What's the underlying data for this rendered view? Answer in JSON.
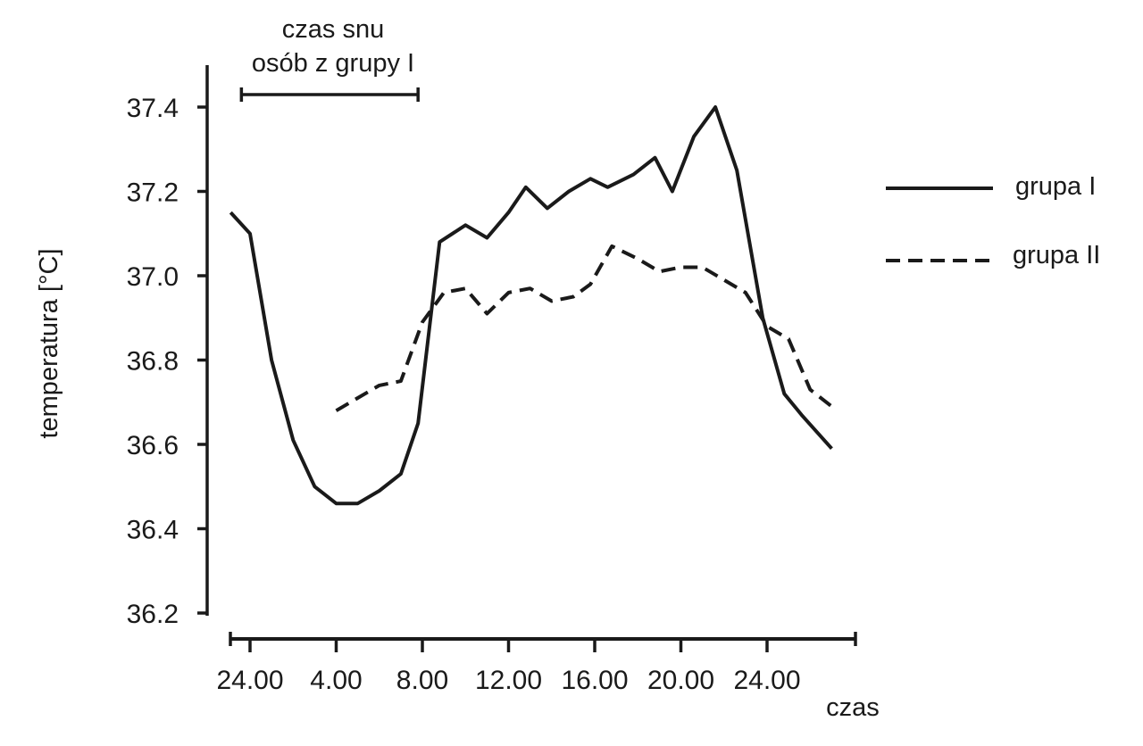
{
  "chart_data": {
    "type": "line",
    "ylabel": "temperatura [°C]",
    "xlabel": "czas",
    "ylim": [
      36.2,
      37.45
    ],
    "y_ticks": [
      "36.2",
      "36.4",
      "36.6",
      "36.8",
      "37.0",
      "37.2",
      "37.4"
    ],
    "x_ticks": [
      "24.00",
      "4.00",
      "8.00",
      "12.00",
      "16.00",
      "20.00",
      "24.00"
    ],
    "annotation": {
      "lines": [
        "czas snu",
        "osób z grupy I"
      ],
      "range_hours": [
        23.6,
        7.8
      ]
    },
    "legend_position": "right",
    "grid": false,
    "series": [
      {
        "name": "grupa I",
        "style": "solid",
        "points": [
          [
            23.1,
            37.15
          ],
          [
            24.0,
            37.1
          ],
          [
            25.0,
            36.8
          ],
          [
            26.0,
            36.61
          ],
          [
            27.0,
            36.5
          ],
          [
            28.0,
            36.46
          ],
          [
            29.0,
            36.46
          ],
          [
            30.0,
            36.49
          ],
          [
            31.0,
            36.53
          ],
          [
            31.8,
            36.65
          ],
          [
            32.8,
            37.08
          ],
          [
            34.0,
            37.12
          ],
          [
            35.0,
            37.09
          ],
          [
            36.0,
            37.15
          ],
          [
            36.8,
            37.21
          ],
          [
            37.8,
            37.16
          ],
          [
            38.8,
            37.2
          ],
          [
            39.8,
            37.23
          ],
          [
            40.6,
            37.21
          ],
          [
            41.8,
            37.24
          ],
          [
            42.8,
            37.28
          ],
          [
            43.6,
            37.2
          ],
          [
            44.6,
            37.33
          ],
          [
            45.6,
            37.4
          ],
          [
            46.6,
            37.25
          ],
          [
            47.8,
            36.9
          ],
          [
            48.8,
            36.72
          ],
          [
            49.6,
            36.67
          ],
          [
            51.0,
            36.59
          ]
        ]
      },
      {
        "name": "grupa II",
        "style": "dashed",
        "points": [
          [
            28.0,
            36.68
          ],
          [
            29.0,
            36.71
          ],
          [
            30.0,
            36.74
          ],
          [
            31.0,
            36.75
          ],
          [
            32.0,
            36.89
          ],
          [
            33.0,
            36.96
          ],
          [
            34.0,
            36.97
          ],
          [
            35.0,
            36.91
          ],
          [
            36.0,
            36.96
          ],
          [
            37.0,
            36.97
          ],
          [
            38.0,
            36.94
          ],
          [
            39.0,
            36.95
          ],
          [
            39.8,
            36.98
          ],
          [
            40.8,
            37.07
          ],
          [
            42.0,
            37.04
          ],
          [
            43.0,
            37.01
          ],
          [
            44.0,
            37.02
          ],
          [
            45.0,
            37.02
          ],
          [
            46.0,
            36.99
          ],
          [
            47.0,
            36.96
          ],
          [
            48.0,
            36.88
          ],
          [
            49.0,
            36.85
          ],
          [
            50.0,
            36.73
          ],
          [
            51.0,
            36.69
          ]
        ]
      }
    ]
  },
  "colors": {
    "line": "#1a1a1a",
    "background": "#ffffff"
  }
}
